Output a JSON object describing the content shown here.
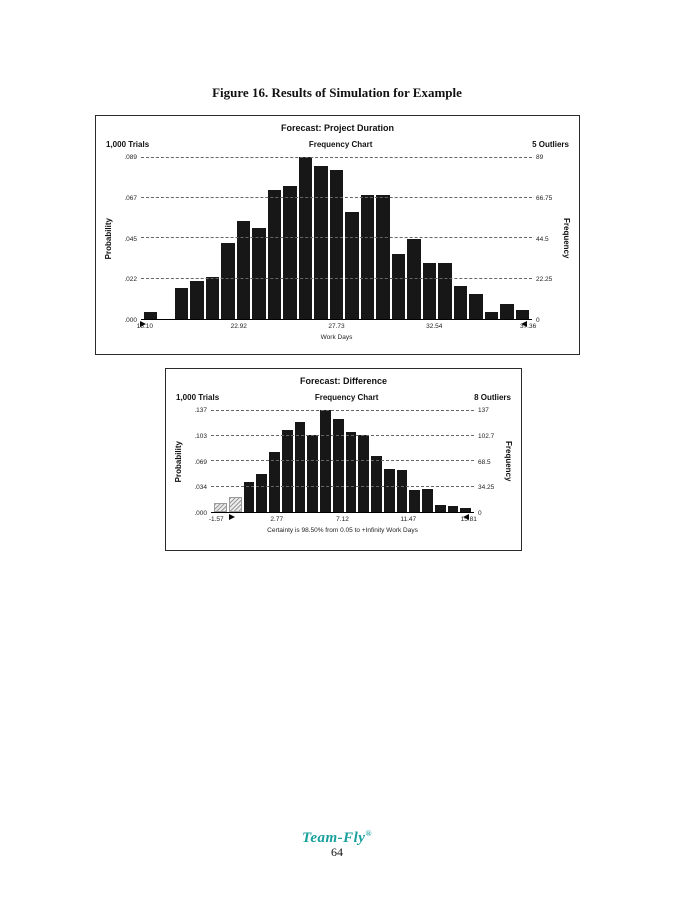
{
  "page": {
    "figure_title": "Figure 16. Results of Simulation for Example"
  },
  "footer": {
    "logo_text": "Team-Fly",
    "registered_mark": "®",
    "page_number": "64"
  },
  "chart_data": [
    {
      "type": "bar",
      "title": "Forecast: Project Duration",
      "trials": "1,000 Trials",
      "subtitle": "Frequency Chart",
      "outliers": "5 Outliers",
      "left_axis_label": "Probability",
      "right_axis_label": "Frequency",
      "left_ticks": [
        ".089",
        ".067",
        ".045",
        ".022",
        ".000"
      ],
      "right_ticks": [
        "89",
        "66.75",
        "44.5",
        "22.25",
        "0"
      ],
      "x_ticks": [
        "18.10",
        "22.92",
        "27.73",
        "32.54",
        "37.36"
      ],
      "xlabel": "Work Days",
      "ymax": 0.089,
      "ylim": [
        0,
        0.089
      ],
      "grid": "dashed-horizontal",
      "values": [
        0.004,
        0,
        0.017,
        0.021,
        0.023,
        0.042,
        0.054,
        0.05,
        0.071,
        0.073,
        0.089,
        0.084,
        0.082,
        0.059,
        0.068,
        0.068,
        0.036,
        0.044,
        0.031,
        0.031,
        0.018,
        0.014,
        0.004,
        0.008,
        0.005
      ],
      "hatched_bars": 0,
      "marker_left_pct": 0.5,
      "marker_right_pct": 98,
      "bar_color": "#171717"
    },
    {
      "type": "bar",
      "title": "Forecast: Difference",
      "trials": "1,000 Trials",
      "subtitle": "Frequency Chart",
      "outliers": "8 Outliers",
      "left_axis_label": "Probability",
      "right_axis_label": "Frequency",
      "left_ticks": [
        ".137",
        ".103",
        ".069",
        ".034",
        ".000"
      ],
      "right_ticks": [
        "137",
        "102.7",
        "68.5",
        "34.25",
        "0"
      ],
      "x_ticks": [
        "-1.57",
        "2.77",
        "7.12",
        "11.47",
        "15.81"
      ],
      "xlabel": "Certainty is 98.50% from 0.05 to +Infinity Work Days",
      "ymax": 0.137,
      "ylim": [
        0,
        0.137
      ],
      "grid": "dashed-horizontal",
      "values": [
        0.012,
        0.02,
        0.04,
        0.051,
        0.08,
        0.11,
        0.121,
        0.103,
        0.137,
        0.125,
        0.107,
        0.104,
        0.075,
        0.058,
        0.057,
        0.03,
        0.031,
        0.01,
        0.008,
        0.005
      ],
      "hatched_bars": 2,
      "marker_left_pct": 8,
      "marker_right_pct": 97,
      "bar_color": "#171717"
    }
  ]
}
